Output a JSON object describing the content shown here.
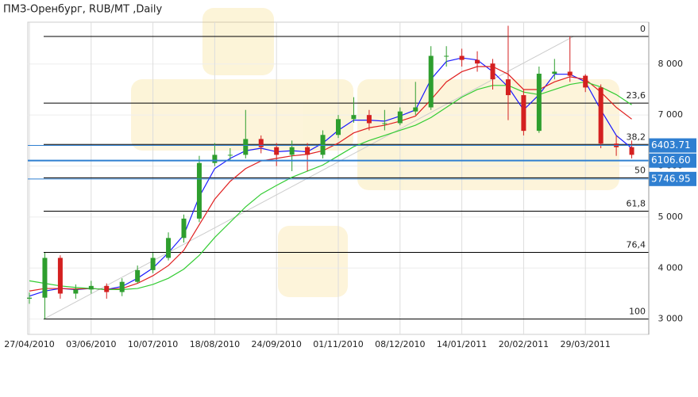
{
  "chart_data": {
    "type": "candlestick",
    "title": "ПМЗ-Оренбург,  RUB/MT ,Daily",
    "categories": [
      "27/04/2010",
      null,
      null,
      null,
      "03/06/2010",
      null,
      null,
      null,
      "10/07/2010",
      null,
      null,
      null,
      "18/08/2010",
      null,
      null,
      null,
      "24/09/2010",
      null,
      null,
      null,
      "01/11/2010",
      null,
      null,
      null,
      "08/12/2010",
      null,
      null,
      null,
      "14/01/2011",
      null,
      null,
      null,
      "20/02/2011",
      null,
      null,
      null,
      "29/03/2011",
      null,
      null,
      null
    ],
    "open": [
      3400,
      3420,
      4200,
      3500,
      3580,
      3650,
      3530,
      3730,
      3960,
      4200,
      4590,
      4970,
      6060,
      6220,
      6220,
      6530,
      6370,
      6220,
      6370,
      6220,
      6610,
      6920,
      7000,
      6840,
      6840,
      7070,
      7150,
      8160,
      8160,
      8080,
      8010,
      7700,
      7390,
      6690,
      7810,
      7850,
      7770,
      7540,
      6440,
      6370
    ],
    "high": [
      3520,
      4300,
      4250,
      3680,
      3750,
      3700,
      3800,
      4050,
      4300,
      4700,
      5050,
      6200,
      6450,
      6350,
      7100,
      6600,
      6450,
      6500,
      6450,
      6700,
      7000,
      7350,
      7100,
      7100,
      7150,
      7650,
      8350,
      8350,
      8300,
      8250,
      8100,
      8750,
      7500,
      7950,
      8100,
      8540,
      7800,
      7600,
      6600,
      6500
    ],
    "low": [
      3300,
      3000,
      3400,
      3400,
      3500,
      3400,
      3450,
      3700,
      3900,
      4150,
      4500,
      4900,
      6000,
      6100,
      6150,
      6250,
      6000,
      5900,
      5900,
      6150,
      6550,
      6850,
      6700,
      6700,
      6800,
      7000,
      7100,
      7950,
      7950,
      7850,
      7500,
      6900,
      6600,
      6650,
      7700,
      7650,
      7450,
      6350,
      6200,
      6150
    ],
    "close": [
      3420,
      4200,
      3500,
      3580,
      3650,
      3530,
      3730,
      3960,
      4200,
      4590,
      4970,
      6060,
      6220,
      6220,
      6530,
      6370,
      6220,
      6370,
      6220,
      6610,
      6920,
      7000,
      6840,
      6840,
      7070,
      7150,
      8160,
      8160,
      8080,
      8010,
      7700,
      7390,
      6690,
      7810,
      7850,
      7770,
      7540,
      6440,
      6370,
      6220
    ],
    "up_color": "#2e9e2e",
    "down_color": "#d42020",
    "moving_averages": [
      {
        "color": "#1a1aff",
        "values": [
          3450,
          3550,
          3600,
          3580,
          3600,
          3580,
          3640,
          3800,
          4000,
          4300,
          4650,
          5400,
          5950,
          6150,
          6300,
          6350,
          6280,
          6300,
          6280,
          6450,
          6700,
          6900,
          6900,
          6880,
          6980,
          7100,
          7700,
          8050,
          8120,
          8080,
          7850,
          7550,
          7100,
          7400,
          7800,
          7800,
          7650,
          7100,
          6600,
          6350
        ]
      },
      {
        "color": "#e02020",
        "values": [
          3550,
          3600,
          3600,
          3590,
          3600,
          3580,
          3600,
          3700,
          3850,
          4050,
          4350,
          4850,
          5350,
          5700,
          5950,
          6100,
          6150,
          6200,
          6230,
          6300,
          6450,
          6650,
          6750,
          6800,
          6880,
          6980,
          7300,
          7650,
          7850,
          7950,
          7950,
          7800,
          7500,
          7500,
          7650,
          7750,
          7700,
          7450,
          7150,
          6920
        ]
      },
      {
        "color": "#33cc33",
        "values": [
          3750,
          3700,
          3650,
          3620,
          3600,
          3580,
          3580,
          3600,
          3680,
          3800,
          3980,
          4250,
          4600,
          4900,
          5200,
          5450,
          5620,
          5780,
          5900,
          6020,
          6200,
          6380,
          6500,
          6600,
          6700,
          6800,
          6950,
          7150,
          7350,
          7500,
          7580,
          7580,
          7450,
          7400,
          7500,
          7600,
          7650,
          7550,
          7400,
          7200
        ]
      }
    ],
    "fib_levels": [
      {
        "value": 8540,
        "label": "0"
      },
      {
        "value": 7233,
        "label": "23,6"
      },
      {
        "value": 6424,
        "label": "38,2"
      },
      {
        "value": 5770,
        "label": "50"
      },
      {
        "value": 5116,
        "label": "61,8"
      },
      {
        "value": 4307,
        "label": "76,4"
      },
      {
        "value": 3000,
        "label": "100"
      }
    ],
    "price_levels": [
      6403.71,
      {
        "value": 6106.6,
        "label": "6106.60"
      },
      5746.95
    ],
    "price_color": "#2f7fd1",
    "ylim": [
      2700,
      8820
    ],
    "yticks": [
      {
        "value": 3000,
        "label": "3 000"
      },
      {
        "value": 4000,
        "label": "4 000"
      },
      {
        "value": 5000,
        "label": "5 000"
      },
      {
        "value": 6000,
        "label": "6 000"
      },
      {
        "value": 7000,
        "label": "7 000"
      },
      {
        "value": 8000,
        "label": "8 000"
      }
    ],
    "grid": true
  }
}
